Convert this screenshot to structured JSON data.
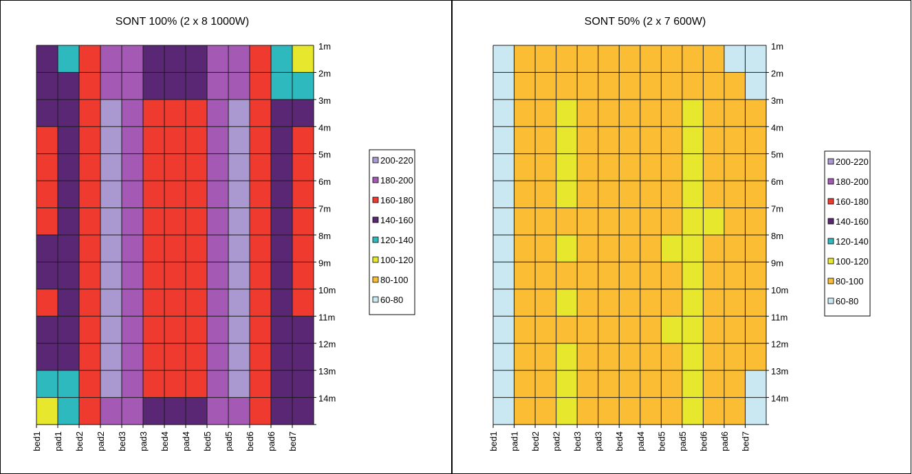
{
  "chart_data": [
    {
      "type": "heatmap",
      "title": "SONT 100%  (2 x 8 1000W)",
      "x_categories": [
        "bed1",
        "pad1",
        "bed2",
        "pad2",
        "bed3",
        "pad3",
        "bed4",
        "pad4",
        "bed5",
        "pad5",
        "bed6",
        "pad6",
        "bed7"
      ],
      "y_categories": [
        "1m",
        "2m",
        "3m",
        "4m",
        "5m",
        "6m",
        "7m",
        "8m",
        "9m",
        "10m",
        "11m",
        "12m",
        "13m",
        "14m"
      ],
      "legend": [
        {
          "label": "200-220",
          "color": "#A999D0"
        },
        {
          "label": "180-200",
          "color": "#A45AB5"
        },
        {
          "label": "160-180",
          "color": "#EE3A2F"
        },
        {
          "label": "140-160",
          "color": "#5A2775"
        },
        {
          "label": "120-140",
          "color": "#2EB9BE"
        },
        {
          "label": "100-120",
          "color": "#E7E82E"
        },
        {
          "label": "80-100",
          "color": "#FBBD33"
        },
        {
          "label": "60-80",
          "color": "#C9E8F2"
        }
      ],
      "legend_position": "right",
      "grid": true,
      "values": [
        [
          150,
          130,
          170,
          190,
          180,
          150,
          150,
          150,
          180,
          190,
          170,
          130,
          110
        ],
        [
          150,
          150,
          170,
          190,
          180,
          150,
          150,
          150,
          180,
          190,
          170,
          130,
          130
        ],
        [
          150,
          150,
          170,
          200,
          180,
          170,
          170,
          170,
          180,
          200,
          170,
          150,
          150
        ],
        [
          170,
          150,
          170,
          200,
          180,
          170,
          170,
          170,
          180,
          200,
          170,
          150,
          170
        ],
        [
          170,
          150,
          170,
          200,
          180,
          170,
          170,
          170,
          180,
          210,
          170,
          150,
          170
        ],
        [
          170,
          150,
          170,
          200,
          180,
          170,
          170,
          170,
          180,
          210,
          170,
          150,
          170
        ],
        [
          170,
          150,
          170,
          210,
          180,
          170,
          170,
          170,
          180,
          210,
          170,
          150,
          170
        ],
        [
          150,
          150,
          170,
          200,
          180,
          170,
          170,
          170,
          180,
          200,
          170,
          150,
          170
        ],
        [
          150,
          150,
          170,
          210,
          180,
          170,
          170,
          170,
          180,
          210,
          170,
          150,
          170
        ],
        [
          170,
          150,
          170,
          200,
          180,
          170,
          170,
          170,
          180,
          200,
          170,
          150,
          170
        ],
        [
          150,
          150,
          170,
          200,
          180,
          170,
          170,
          170,
          180,
          210,
          170,
          150,
          150
        ],
        [
          150,
          150,
          170,
          200,
          180,
          170,
          170,
          170,
          180,
          210,
          170,
          150,
          150
        ],
        [
          120,
          130,
          170,
          200,
          180,
          170,
          170,
          170,
          180,
          210,
          170,
          150,
          150
        ],
        [
          110,
          130,
          170,
          190,
          180,
          150,
          150,
          150,
          180,
          190,
          170,
          150,
          150
        ]
      ]
    },
    {
      "type": "heatmap",
      "title": "SONT 50%  (2 x 7 600W)",
      "x_categories": [
        "bed1",
        "pad1",
        "bed2",
        "pad2",
        "bed3",
        "pad3",
        "bed4",
        "pad4",
        "bed5",
        "pad5",
        "bed6",
        "pad6",
        "bed7"
      ],
      "y_categories": [
        "1m",
        "2m",
        "3m",
        "4m",
        "5m",
        "6m",
        "7m",
        "8m",
        "9m",
        "10m",
        "11m",
        "12m",
        "13m",
        "14m"
      ],
      "legend": [
        {
          "label": "200-220",
          "color": "#A999D0"
        },
        {
          "label": "180-200",
          "color": "#A45AB5"
        },
        {
          "label": "160-180",
          "color": "#EE3A2F"
        },
        {
          "label": "140-160",
          "color": "#5A2775"
        },
        {
          "label": "120-140",
          "color": "#2EB9BE"
        },
        {
          "label": "100-120",
          "color": "#E7E82E"
        },
        {
          "label": "80-100",
          "color": "#FBBD33"
        },
        {
          "label": "60-80",
          "color": "#C9E8F2"
        }
      ],
      "legend_position": "right",
      "grid": true,
      "values": [
        [
          70,
          90,
          90,
          90,
          90,
          90,
          90,
          90,
          90,
          90,
          90,
          70,
          70
        ],
        [
          70,
          90,
          90,
          90,
          90,
          90,
          90,
          90,
          90,
          90,
          90,
          90,
          70
        ],
        [
          70,
          90,
          90,
          110,
          90,
          90,
          90,
          90,
          90,
          110,
          90,
          90,
          90
        ],
        [
          70,
          90,
          90,
          110,
          90,
          90,
          90,
          90,
          90,
          110,
          90,
          90,
          90
        ],
        [
          70,
          90,
          90,
          110,
          90,
          90,
          90,
          90,
          90,
          110,
          90,
          90,
          90
        ],
        [
          70,
          90,
          90,
          110,
          90,
          90,
          90,
          90,
          90,
          110,
          90,
          90,
          90
        ],
        [
          70,
          90,
          90,
          90,
          90,
          90,
          90,
          90,
          90,
          110,
          110,
          90,
          90
        ],
        [
          70,
          90,
          90,
          110,
          90,
          90,
          90,
          90,
          110,
          110,
          90,
          90,
          90
        ],
        [
          70,
          90,
          90,
          90,
          90,
          90,
          90,
          90,
          90,
          110,
          90,
          90,
          90
        ],
        [
          70,
          90,
          90,
          110,
          90,
          90,
          90,
          90,
          90,
          110,
          90,
          90,
          90
        ],
        [
          70,
          90,
          90,
          90,
          90,
          90,
          90,
          90,
          110,
          110,
          90,
          90,
          90
        ],
        [
          70,
          90,
          90,
          110,
          90,
          90,
          90,
          90,
          90,
          110,
          90,
          90,
          90
        ],
        [
          70,
          90,
          90,
          110,
          90,
          90,
          90,
          90,
          90,
          110,
          90,
          90,
          70
        ],
        [
          70,
          90,
          90,
          110,
          90,
          90,
          90,
          90,
          90,
          110,
          90,
          90,
          70
        ]
      ]
    }
  ]
}
